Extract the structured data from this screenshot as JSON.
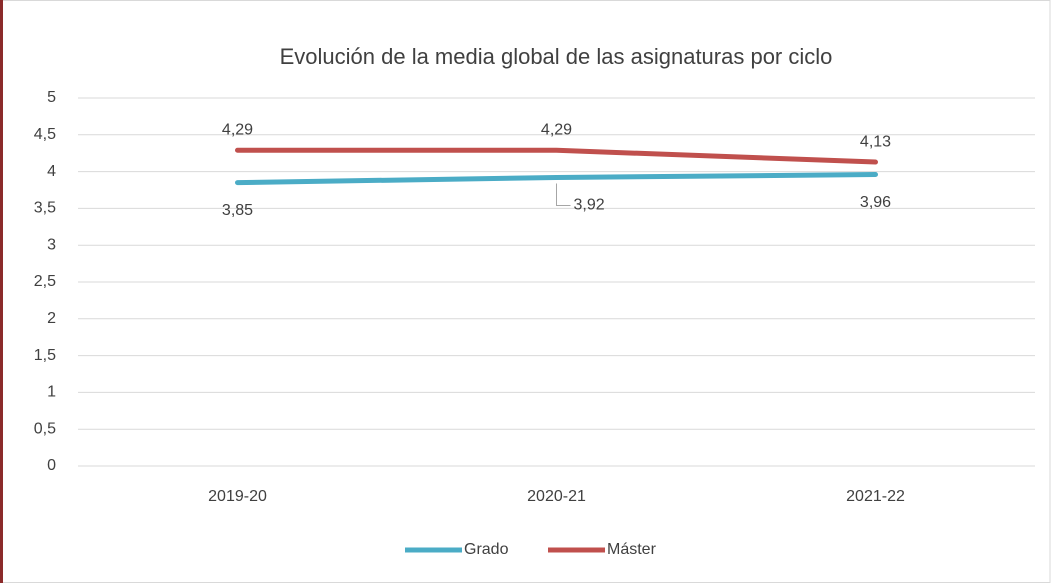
{
  "chart_data": {
    "type": "line",
    "title": "Evolución de la media global de las asignaturas por ciclo",
    "categories": [
      "2019-20",
      "2020-21",
      "2021-22"
    ],
    "series": [
      {
        "name": "Grado",
        "color": "#4bacc6",
        "values": [
          3.85,
          3.92,
          3.96
        ],
        "value_labels": [
          "3,85",
          "3,92",
          "3,96"
        ]
      },
      {
        "name": "Máster",
        "color": "#c0504d",
        "values": [
          4.29,
          4.29,
          4.13
        ],
        "value_labels": [
          "4,29",
          "4,29",
          "4,13"
        ]
      }
    ],
    "ylim": [
      0,
      5
    ],
    "yticks": [
      0,
      {
        "value": 0.5,
        "label": "0,5"
      },
      1,
      {
        "value": 1.5,
        "label": "1,5"
      },
      2,
      {
        "value": 2.5,
        "label": "2,5"
      },
      3,
      {
        "value": 3.5,
        "label": "3,5"
      },
      4,
      {
        "value": 4.5,
        "label": "4,5"
      },
      5
    ],
    "grid": true,
    "legend": "bottom"
  }
}
